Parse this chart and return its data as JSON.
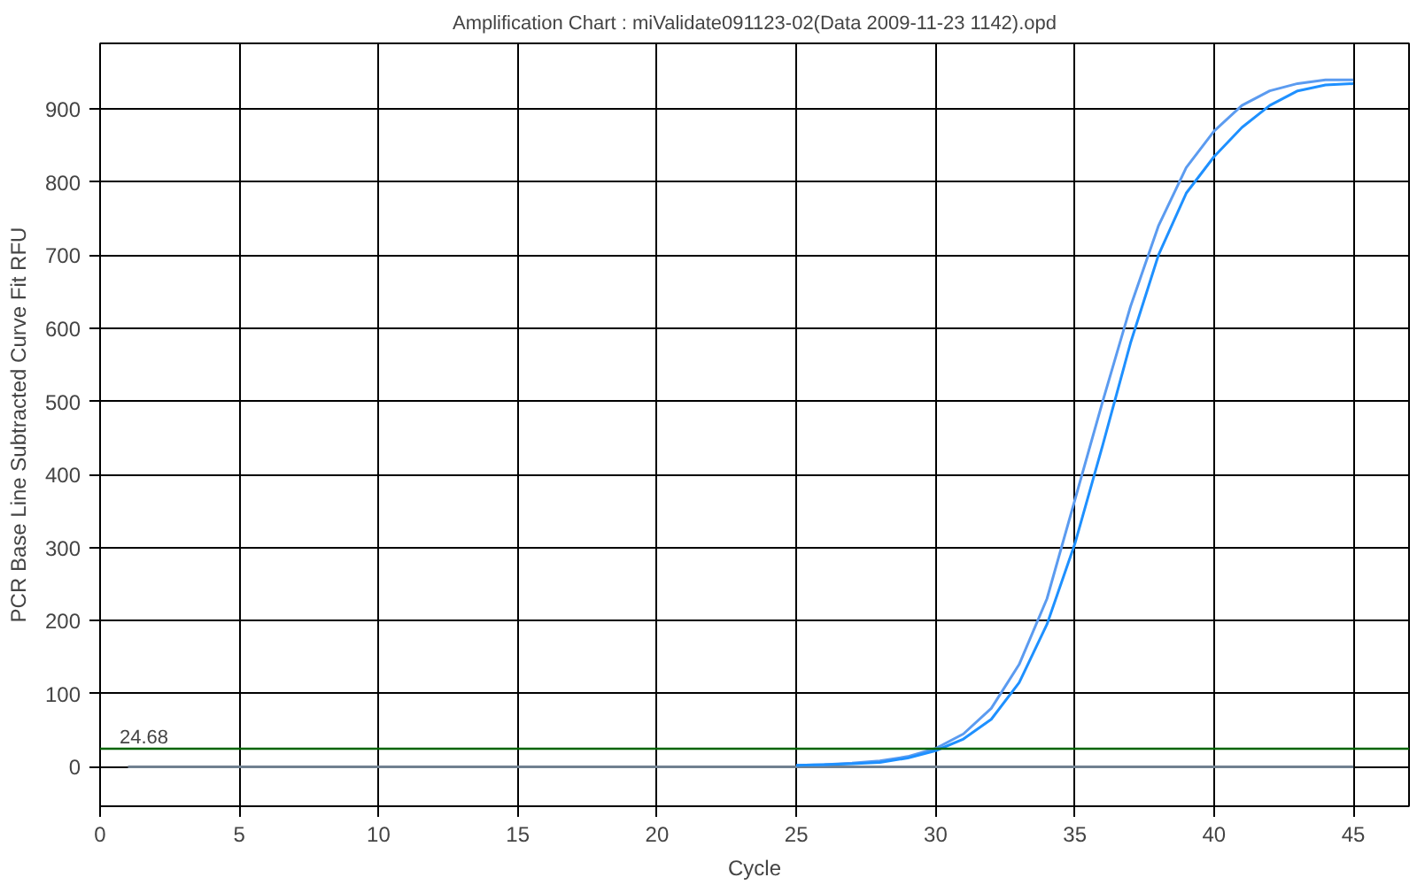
{
  "chart_data": {
    "type": "line",
    "title": "Amplification Chart : miValidate091123-02(Data 2009-11-23 1142).opd",
    "xlabel": "Cycle",
    "ylabel": "PCR Base Line Subtracted Curve Fit RFU",
    "xlim": [
      0,
      47
    ],
    "ylim": [
      -54,
      990
    ],
    "xticks": [
      0,
      5,
      10,
      15,
      20,
      25,
      30,
      35,
      40,
      45
    ],
    "yticks": [
      0,
      100,
      200,
      300,
      400,
      500,
      600,
      700,
      800,
      900
    ],
    "grid": true,
    "marker": "none",
    "line_style": "solid",
    "ref_lines": [
      {
        "axis": "y",
        "value": 24.68,
        "label": "24.68",
        "color": "#006400"
      }
    ],
    "series": [
      {
        "color": "#708090",
        "x": [
          1,
          5,
          10,
          15,
          20,
          25,
          30,
          35,
          40,
          45
        ],
        "values": [
          0,
          0,
          0,
          0,
          0,
          0,
          0,
          0,
          0,
          0
        ]
      },
      {
        "color": "#5b9bf0",
        "x": [
          25,
          26,
          27,
          28,
          29,
          30,
          31,
          32,
          33,
          34,
          35,
          36,
          37,
          38,
          39,
          40,
          41,
          42,
          43,
          44,
          45
        ],
        "values": [
          2,
          3,
          5,
          8,
          14,
          25,
          45,
          80,
          140,
          230,
          365,
          500,
          630,
          740,
          820,
          870,
          905,
          925,
          935,
          940,
          940
        ]
      },
      {
        "color": "#1e90ff",
        "x": [
          25,
          26,
          27,
          28,
          29,
          30,
          31,
          32,
          33,
          34,
          35,
          36,
          37,
          38,
          39,
          40,
          41,
          42,
          43,
          44,
          45
        ],
        "values": [
          2,
          3,
          4,
          6,
          12,
          22,
          38,
          65,
          115,
          195,
          305,
          440,
          580,
          700,
          785,
          835,
          875,
          905,
          925,
          933,
          935
        ]
      }
    ]
  }
}
